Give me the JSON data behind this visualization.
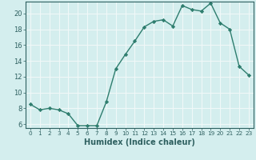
{
  "x": [
    0,
    1,
    2,
    3,
    4,
    5,
    6,
    7,
    8,
    9,
    10,
    11,
    12,
    13,
    14,
    15,
    16,
    17,
    18,
    19,
    20,
    21,
    22,
    23
  ],
  "y": [
    8.5,
    7.8,
    8.0,
    7.8,
    7.3,
    5.8,
    5.8,
    5.8,
    8.8,
    13.0,
    14.8,
    16.5,
    18.3,
    19.0,
    19.2,
    18.4,
    21.0,
    20.5,
    20.3,
    21.3,
    18.8,
    18.0,
    13.3,
    12.2
  ],
  "line_color": "#2e7d6e",
  "marker": "D",
  "markersize": 2.2,
  "linewidth": 1.0,
  "background_color": "#d4eeee",
  "grid_color": "#f0f8f8",
  "xlabel": "Humidex (Indice chaleur)",
  "xlim": [
    -0.5,
    23.5
  ],
  "ylim": [
    5.5,
    21.5
  ],
  "yticks": [
    6,
    8,
    10,
    12,
    14,
    16,
    18,
    20
  ],
  "xticks": [
    0,
    1,
    2,
    3,
    4,
    5,
    6,
    7,
    8,
    9,
    10,
    11,
    12,
    13,
    14,
    15,
    16,
    17,
    18,
    19,
    20,
    21,
    22,
    23
  ],
  "xlabel_fontsize": 7,
  "tick_fontsize": 6,
  "tick_color": "#2e6060",
  "axis_color": "#2e6060",
  "spine_color": "#2e6060"
}
